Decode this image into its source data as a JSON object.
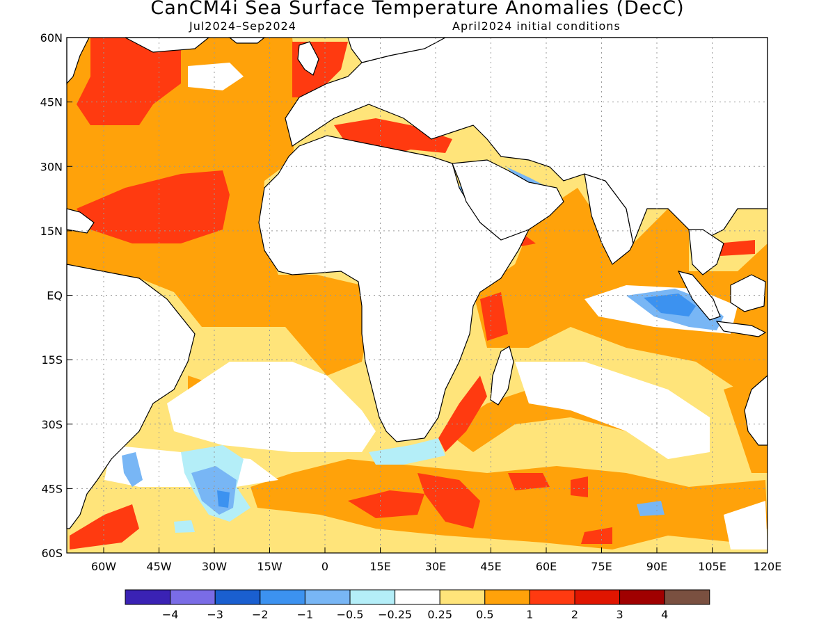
{
  "header": {
    "title": "CanCM4i Sea Surface Temperature Anomalies (DecC)",
    "period": "Jul2024–Sep2024",
    "init": "April2024 initial conditions"
  },
  "axes": {
    "lat_labels": [
      "60N",
      "45N",
      "30N",
      "15N",
      "EQ",
      "15S",
      "30S",
      "45S",
      "60S"
    ],
    "lon_labels": [
      "60W",
      "45W",
      "30W",
      "15W",
      "0",
      "15E",
      "30E",
      "45E",
      "60E",
      "75E",
      "90E",
      "105E",
      "120E"
    ]
  },
  "legend": {
    "colors": [
      "#3a22b4",
      "#7a6ce6",
      "#1a5fd0",
      "#3c92f0",
      "#78b6f5",
      "#b4eef8",
      "#ffffff",
      "#ffe47a",
      "#ffa20a",
      "#ff3a10",
      "#e01500",
      "#a00000",
      "#7a5040"
    ],
    "labels": [
      "−4",
      "−3",
      "−2",
      "−1",
      "−0.5",
      "−0.25",
      "0.25",
      "0.5",
      "1",
      "2",
      "3",
      "4"
    ]
  },
  "map_data": {
    "colors": {
      "land": "#ffffff",
      "coast": "#000000",
      "neg_strong": "#7a6ce6",
      "neg_mid": "#3c92f0",
      "neg_weak": "#78b6f5",
      "neg_faint": "#b4eef8",
      "pos_weak": "#ffe47a",
      "pos_mid": "#ffa20a",
      "pos_strong": "#ff3a10",
      "pos_max": "#e01500"
    }
  }
}
